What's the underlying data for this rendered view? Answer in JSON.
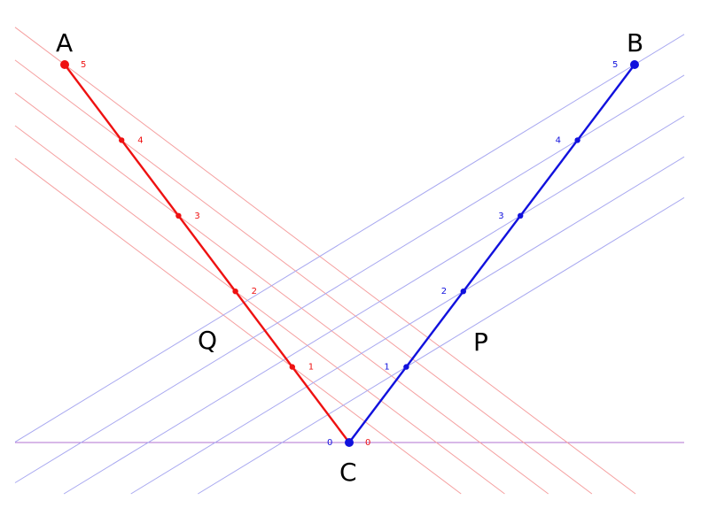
{
  "points": {
    "A": "A",
    "B": "B",
    "C": "C",
    "Q": "Q",
    "P": "P"
  },
  "red_ticks": [
    "0",
    "1",
    "2",
    "3",
    "4",
    "5"
  ],
  "blue_ticks": [
    "0",
    "1",
    "2",
    "3",
    "4",
    "5"
  ],
  "colors": {
    "red": "#ee1111",
    "red_light": "#f5a0a0",
    "blue": "#1111dd",
    "blue_light": "#a8a8f0",
    "baseline": "#b070d0"
  }
}
